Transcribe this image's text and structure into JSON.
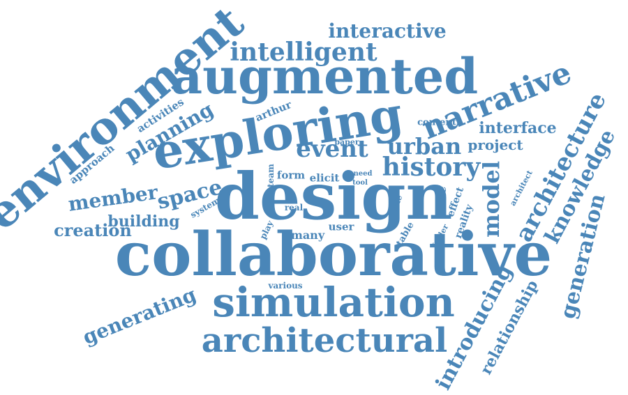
{
  "color": "#4a86b8",
  "words": {
    "collaborative": "collaborative",
    "design": "design",
    "augmented": "augmented",
    "exploring": "exploring",
    "simulation": "simulation",
    "architectural": "architectural",
    "environment": "environment",
    "narrative": "narrative",
    "intelligent": "intelligent",
    "interactive": "interactive",
    "history": "history",
    "event": "event",
    "urban": "urban",
    "architecture": "architecture",
    "knowledge": "knowledge",
    "generation": "generation",
    "model": "model",
    "introducing": "introducing",
    "generating": "generating",
    "relationship": "relationship",
    "planning": "planning",
    "space": "space",
    "member": "member",
    "creation": "creation",
    "building": "building",
    "interface": "interface",
    "project": "project",
    "approach": "approach",
    "activities": "activities",
    "arthur": "arthur",
    "paper": "paper",
    "content": "content",
    "team": "team",
    "form": "form",
    "elicit": "elicit",
    "need": "need",
    "tool": "tool",
    "system": "system",
    "real": "real",
    "play": "play",
    "many": "many",
    "user": "user",
    "various": "various",
    "role": "role",
    "table": "table",
    "time": "time",
    "effect": "effect",
    "reality": "reality",
    "folder": "folder",
    "architect": "architect"
  }
}
